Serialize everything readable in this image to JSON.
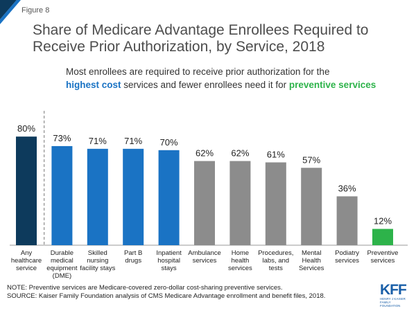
{
  "header": {
    "figure_label": "Figure 8",
    "title": "Share of Medicare Advantage Enrollees Required to Receive Prior Authorization, by Service, 2018",
    "subtitle_part1": "Most enrollees are required to receive prior authorization for the",
    "subtitle_highlight1": "highest cost",
    "subtitle_part2": " services and fewer enrollees need it for ",
    "subtitle_highlight2": "preventive services"
  },
  "footer": {
    "note": "NOTE: Preventive services are Medicare-covered zero-dollar cost-sharing preventive services.",
    "source": "SOURCE: Kaiser Family Foundation analysis of CMS Medicare Advantage enrollment and benefit files, 2018."
  },
  "logo": {
    "text": "KFF",
    "sub1": "HENRY J KAISER",
    "sub2": "FAMILY FOUNDATION"
  },
  "colors": {
    "accent_blue": "#1a73c4",
    "dark_navy": "#0d3a5c",
    "gray": "#8c8c8c",
    "green": "#2db34a"
  },
  "chart_data": {
    "type": "bar",
    "categories": [
      [
        "Any",
        "healthcare",
        "service"
      ],
      [
        "Durable",
        "medical",
        "equipment",
        "(DME)"
      ],
      [
        "Skilled",
        "nursing",
        "facility stays"
      ],
      [
        "Part B",
        "drugs"
      ],
      [
        "Inpatient",
        "hospital",
        "stays"
      ],
      [
        "Ambulance",
        "services"
      ],
      [
        "Home",
        "health",
        "services"
      ],
      [
        "Procedures,",
        "labs, and",
        "tests"
      ],
      [
        "Mental",
        "Health",
        "Services"
      ],
      [
        "Podiatry",
        "services"
      ],
      [
        "Preventive",
        "services"
      ]
    ],
    "values": [
      80,
      73,
      71,
      71,
      70,
      62,
      62,
      61,
      57,
      36,
      12
    ],
    "value_labels": [
      "80%",
      "73%",
      "71%",
      "71%",
      "70%",
      "62%",
      "62%",
      "61%",
      "57%",
      "36%",
      "12%"
    ],
    "bar_colors": [
      "#0d3a5c",
      "#1a73c4",
      "#1a73c4",
      "#1a73c4",
      "#1a73c4",
      "#8c8c8c",
      "#8c8c8c",
      "#8c8c8c",
      "#8c8c8c",
      "#8c8c8c",
      "#2db34a"
    ],
    "ylim": [
      0,
      100
    ],
    "grid": false,
    "legend": "none"
  }
}
